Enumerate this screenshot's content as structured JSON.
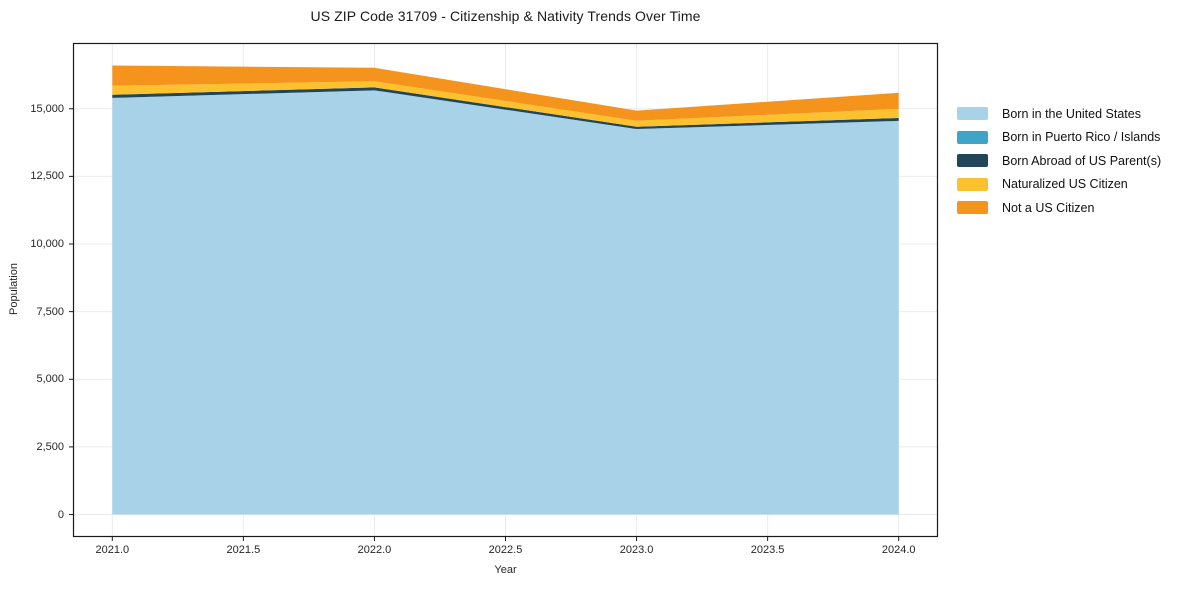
{
  "title": "US ZIP Code 31709 - Citizenship & Nativity Trends Over Time",
  "chart_data": {
    "type": "area",
    "stacked": true,
    "title": "US ZIP Code 31709 - Citizenship & Nativity Trends Over Time",
    "xlabel": "Year",
    "ylabel": "Population",
    "x": [
      2021.0,
      2022.0,
      2023.0,
      2024.0
    ],
    "series": [
      {
        "name": "Born in the United States",
        "color": "#a7d2e8",
        "values": [
          15400,
          15680,
          14250,
          14550
        ]
      },
      {
        "name": "Born in Puerto Rico / Islands",
        "color": "#3fa5c6",
        "values": [
          0,
          0,
          0,
          0
        ]
      },
      {
        "name": "Born Abroad of US Parent(s)",
        "color": "#21465a",
        "values": [
          115,
          110,
          85,
          110
        ]
      },
      {
        "name": "Naturalized US Citizen",
        "color": "#fcc12e",
        "values": [
          335,
          225,
          220,
          335
        ]
      },
      {
        "name": "Not a US Citizen",
        "color": "#f5941d",
        "values": [
          750,
          500,
          375,
          595
        ]
      }
    ],
    "totals": [
      16600,
      16515,
      14930,
      15590
    ],
    "xlim": [
      2020.85,
      2024.15
    ],
    "ylim": [
      -830,
      17430
    ],
    "xticks": {
      "values": [
        2021.0,
        2021.5,
        2022.0,
        2022.5,
        2023.0,
        2023.5,
        2024.0
      ],
      "labels": [
        "2021.0",
        "2021.5",
        "2022.0",
        "2022.5",
        "2023.0",
        "2023.5",
        "2024.0"
      ]
    },
    "yticks": {
      "values": [
        0,
        2500,
        5000,
        7500,
        10000,
        12500,
        15000
      ],
      "labels": [
        "0",
        "2,500",
        "5,000",
        "7,500",
        "10,000",
        "12,500",
        "15,000"
      ]
    },
    "grid": true,
    "grid_color": "#ebebeb",
    "spine_color": "#1a1a1a",
    "legend_position": "right"
  }
}
